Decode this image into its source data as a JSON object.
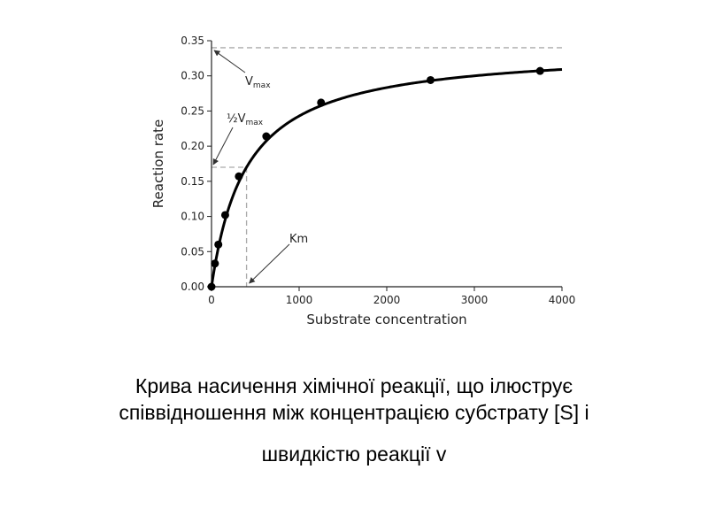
{
  "chart_data": {
    "type": "line",
    "title": "",
    "xlabel": "Substrate concentration",
    "ylabel": "Reaction rate",
    "xlim": [
      0,
      4000
    ],
    "ylim": [
      0,
      0.35
    ],
    "x_ticks": [
      0,
      1000,
      2000,
      3000,
      4000
    ],
    "y_ticks": [
      0.0,
      0.05,
      0.1,
      0.15,
      0.2,
      0.25,
      0.3,
      0.35
    ],
    "x_tick_labels": [
      "0",
      "1000",
      "2000",
      "3000",
      "4000"
    ],
    "y_tick_labels": [
      "0.00",
      "0.05",
      "0.10",
      "0.15",
      "0.20",
      "0.25",
      "0.30",
      "0.35"
    ],
    "grid": false,
    "legend": "none",
    "curve_color": "#000000",
    "guide_color": "#aaaaaa",
    "vmax": 0.34,
    "km": 400,
    "points": [
      {
        "x": 0,
        "y": 0.0
      },
      {
        "x": 39,
        "y": 0.033
      },
      {
        "x": 78,
        "y": 0.06
      },
      {
        "x": 156,
        "y": 0.102
      },
      {
        "x": 312,
        "y": 0.157
      },
      {
        "x": 625,
        "y": 0.214
      },
      {
        "x": 1250,
        "y": 0.262
      },
      {
        "x": 2500,
        "y": 0.294
      },
      {
        "x": 3750,
        "y": 0.307
      }
    ],
    "annotations": {
      "vmax_main": "V",
      "vmax_sub": "max",
      "half_prefix": "½V",
      "half_sub": "max",
      "km_label": "Km"
    }
  },
  "caption": {
    "line1": "Крива насичення хімічної реакції, що ілюструє",
    "line2": "співвідношення між концентрацією субстрату [S] і",
    "line3": "швидкістю реакції v"
  }
}
